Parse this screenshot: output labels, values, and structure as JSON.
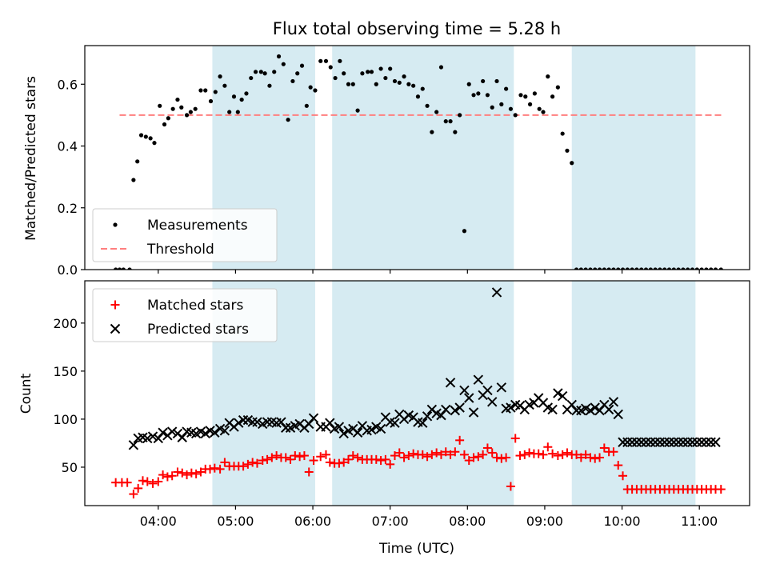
{
  "title": "Flux total observing time = 5.28 h",
  "colors": {
    "measurement": "#000000",
    "threshold": "#ff7f7f",
    "matched": "#ff0000",
    "predicted": "#000000",
    "shade": "#add8e6"
  },
  "chart_data": [
    {
      "type": "scatter",
      "ylabel": "Matched/Predicted stars",
      "xlim": [
        3.05,
        11.65
      ],
      "ylim": [
        0,
        0.725
      ],
      "yticks": [
        0,
        0.2,
        0.4,
        0.6
      ],
      "ytick_labels": [
        "0.0",
        "0.2",
        "0.4",
        "0.6"
      ],
      "xticks": [
        4,
        5,
        6,
        7,
        8,
        9,
        10,
        11
      ],
      "shaded_intervals_hours": [
        [
          4.7,
          6.03
        ],
        [
          6.25,
          8.6
        ],
        [
          9.35,
          10.95
        ]
      ],
      "legend": {
        "position": "lower-left",
        "entries": [
          "Measurements",
          "Threshold"
        ]
      },
      "threshold": {
        "name": "Threshold",
        "value": 0.5,
        "x_range": [
          3.5,
          11.3
        ]
      },
      "series": [
        {
          "name": "Measurements",
          "marker": "dot",
          "x": [
            3.45,
            3.5,
            3.55,
            3.63,
            3.68,
            3.73,
            3.78,
            3.84,
            3.9,
            3.95,
            4.02,
            4.08,
            4.13,
            4.19,
            4.25,
            4.3,
            4.37,
            4.42,
            4.48,
            4.55,
            4.61,
            4.68,
            4.74,
            4.8,
            4.86,
            4.92,
            4.98,
            5.03,
            5.08,
            5.14,
            5.2,
            5.26,
            5.33,
            5.38,
            5.44,
            5.5,
            5.56,
            5.62,
            5.68,
            5.74,
            5.8,
            5.86,
            5.92,
            5.97,
            6.03,
            6.1,
            6.17,
            6.23,
            6.29,
            6.35,
            6.4,
            6.46,
            6.52,
            6.58,
            6.64,
            6.71,
            6.76,
            6.82,
            6.88,
            6.94,
            7.0,
            7.06,
            7.12,
            7.18,
            7.24,
            7.3,
            7.36,
            7.42,
            7.48,
            7.54,
            7.6,
            7.66,
            7.72,
            7.78,
            7.84,
            7.9,
            7.96,
            8.02,
            8.08,
            8.14,
            8.2,
            8.26,
            8.32,
            8.38,
            8.44,
            8.5,
            8.56,
            8.62,
            8.69,
            8.75,
            8.81,
            8.87,
            8.93,
            8.98,
            9.04,
            9.1,
            9.17,
            9.23,
            9.29,
            9.35,
            9.41,
            9.47,
            9.53,
            9.59,
            9.65,
            9.71,
            9.77,
            9.83,
            9.89,
            9.95,
            10.01,
            10.07,
            10.13,
            10.19,
            10.25,
            10.31,
            10.37,
            10.43,
            10.49,
            10.55,
            10.61,
            10.67,
            10.73,
            10.79,
            10.85,
            10.91,
            10.97,
            11.03,
            11.09,
            11.15,
            11.21,
            11.28
          ],
          "y": [
            0.0,
            0.0,
            0.0,
            0.0,
            0.29,
            0.35,
            0.435,
            0.43,
            0.425,
            0.41,
            0.53,
            0.47,
            0.49,
            0.52,
            0.55,
            0.525,
            0.5,
            0.51,
            0.52,
            0.58,
            0.58,
            0.545,
            0.575,
            0.625,
            0.595,
            0.51,
            0.56,
            0.51,
            0.55,
            0.57,
            0.62,
            0.64,
            0.64,
            0.635,
            0.595,
            0.64,
            0.69,
            0.665,
            0.485,
            0.61,
            0.635,
            0.66,
            0.53,
            0.59,
            0.58,
            0.675,
            0.675,
            0.655,
            0.62,
            0.675,
            0.635,
            0.6,
            0.6,
            0.515,
            0.635,
            0.64,
            0.64,
            0.6,
            0.65,
            0.62,
            0.65,
            0.61,
            0.605,
            0.625,
            0.6,
            0.595,
            0.56,
            0.585,
            0.53,
            0.445,
            0.51,
            0.655,
            0.48,
            0.48,
            0.445,
            0.5,
            0.125,
            0.6,
            0.565,
            0.57,
            0.61,
            0.565,
            0.525,
            0.61,
            0.535,
            0.585,
            0.52,
            0.5,
            0.565,
            0.56,
            0.535,
            0.57,
            0.52,
            0.51,
            0.625,
            0.56,
            0.59,
            0.44,
            0.385,
            0.345,
            0.0,
            0.0,
            0.0,
            0.0,
            0.0,
            0.0,
            0.0,
            0.0,
            0.0,
            0.0,
            0.0,
            0.0,
            0.0,
            0.0,
            0.0,
            0.0,
            0.0,
            0.0,
            0.0,
            0.0,
            0.0,
            0.0,
            0.0,
            0.0,
            0.0,
            0.0,
            0.0,
            0.0,
            0.0,
            0.0,
            0.0,
            0.0
          ]
        }
      ]
    },
    {
      "type": "scatter",
      "xlabel": "Time (UTC)",
      "ylabel": "Count",
      "xlim": [
        3.05,
        11.65
      ],
      "ylim": [
        10,
        244
      ],
      "yticks": [
        50,
        100,
        150,
        200
      ],
      "ytick_labels": [
        "50",
        "100",
        "150",
        "200"
      ],
      "xticks": [
        4,
        5,
        6,
        7,
        8,
        9,
        10,
        11
      ],
      "xtick_labels": [
        "04:00",
        "05:00",
        "06:00",
        "07:00",
        "08:00",
        "09:00",
        "10:00",
        "11:00"
      ],
      "shaded_intervals_hours": [
        [
          4.7,
          6.03
        ],
        [
          6.25,
          8.6
        ],
        [
          9.35,
          10.95
        ]
      ],
      "legend": {
        "position": "upper-left",
        "entries": [
          "Matched stars",
          "Predicted stars"
        ]
      },
      "series": [
        {
          "name": "Matched stars",
          "marker": "plus",
          "x": [
            3.45,
            3.53,
            3.6,
            3.68,
            3.74,
            3.8,
            3.86,
            3.93,
            4.0,
            4.06,
            4.12,
            4.18,
            4.25,
            4.31,
            4.37,
            4.43,
            4.49,
            4.55,
            4.61,
            4.67,
            4.73,
            4.8,
            4.86,
            4.92,
            4.98,
            5.04,
            5.1,
            5.16,
            5.22,
            5.28,
            5.35,
            5.41,
            5.47,
            5.53,
            5.59,
            5.65,
            5.71,
            5.77,
            5.83,
            5.89,
            5.95,
            6.01,
            6.1,
            6.17,
            6.22,
            6.28,
            6.34,
            6.4,
            6.46,
            6.52,
            6.58,
            6.64,
            6.7,
            6.76,
            6.82,
            6.88,
            6.94,
            7.0,
            7.06,
            7.12,
            7.18,
            7.24,
            7.3,
            7.36,
            7.42,
            7.48,
            7.54,
            7.6,
            7.66,
            7.72,
            7.78,
            7.84,
            7.9,
            7.96,
            8.02,
            8.08,
            8.14,
            8.2,
            8.26,
            8.32,
            8.38,
            8.44,
            8.5,
            8.56,
            8.62,
            8.68,
            8.74,
            8.8,
            8.86,
            8.92,
            8.98,
            9.04,
            9.1,
            9.17,
            9.23,
            9.29,
            9.35,
            9.41,
            9.47,
            9.53,
            9.59,
            9.65,
            9.71,
            9.77,
            9.83,
            9.89,
            9.95,
            10.01,
            10.07,
            10.13,
            10.19,
            10.25,
            10.31,
            10.37,
            10.43,
            10.49,
            10.55,
            10.61,
            10.67,
            10.73,
            10.79,
            10.85,
            10.91,
            10.97,
            11.03,
            11.09,
            11.15,
            11.21,
            11.28
          ],
          "y": [
            34,
            34,
            34,
            22,
            28,
            36,
            35,
            33,
            35,
            42,
            40,
            41,
            45,
            44,
            42,
            44,
            43,
            45,
            48,
            48,
            49,
            48,
            55,
            51,
            51,
            51,
            51,
            53,
            55,
            54,
            57,
            58,
            60,
            62,
            60,
            60,
            58,
            62,
            61,
            62,
            45,
            57,
            61,
            63,
            55,
            54,
            54,
            55,
            58,
            62,
            60,
            58,
            58,
            58,
            58,
            57,
            58,
            53,
            62,
            65,
            60,
            62,
            64,
            63,
            63,
            61,
            63,
            65,
            63,
            66,
            63,
            66,
            78,
            63,
            57,
            60,
            61,
            63,
            70,
            65,
            60,
            59,
            60,
            30,
            80,
            62,
            63,
            65,
            64,
            64,
            63,
            71,
            64,
            62,
            63,
            65,
            63,
            63,
            60,
            63,
            60,
            59,
            60,
            70,
            66,
            66,
            52,
            41,
            27,
            27,
            27,
            27,
            27,
            27,
            27,
            27,
            27,
            27,
            27,
            27,
            27,
            27,
            27,
            27,
            27,
            27,
            27,
            27,
            27
          ]
        },
        {
          "name": "Predicted stars",
          "marker": "x",
          "x": [
            3.68,
            3.74,
            3.8,
            3.86,
            3.93,
            4.0,
            4.06,
            4.12,
            4.18,
            4.25,
            4.31,
            4.37,
            4.43,
            4.49,
            4.55,
            4.61,
            4.67,
            4.73,
            4.8,
            4.86,
            4.92,
            4.98,
            5.04,
            5.1,
            5.16,
            5.22,
            5.28,
            5.35,
            5.41,
            5.47,
            5.53,
            5.59,
            5.65,
            5.71,
            5.77,
            5.83,
            5.89,
            5.95,
            6.01,
            6.1,
            6.17,
            6.22,
            6.28,
            6.34,
            6.4,
            6.46,
            6.52,
            6.58,
            6.64,
            6.7,
            6.76,
            6.82,
            6.88,
            6.94,
            7.0,
            7.06,
            7.12,
            7.18,
            7.24,
            7.3,
            7.36,
            7.42,
            7.48,
            7.54,
            7.6,
            7.66,
            7.72,
            7.78,
            7.84,
            7.9,
            7.96,
            8.02,
            8.08,
            8.14,
            8.2,
            8.26,
            8.32,
            8.38,
            8.44,
            8.5,
            8.56,
            8.62,
            8.68,
            8.74,
            8.8,
            8.86,
            8.92,
            8.98,
            9.04,
            9.1,
            9.17,
            9.23,
            9.29,
            9.35,
            9.41,
            9.47,
            9.53,
            9.59,
            9.65,
            9.71,
            9.77,
            9.83,
            9.89,
            9.95,
            10.01,
            10.07,
            10.13,
            10.19,
            10.25,
            10.31,
            10.37,
            10.43,
            10.49,
            10.55,
            10.61,
            10.67,
            10.73,
            10.79,
            10.85,
            10.91,
            10.97,
            11.03,
            11.09,
            11.15,
            11.21
          ],
          "y": [
            73,
            80,
            81,
            80,
            82,
            80,
            86,
            83,
            87,
            85,
            81,
            87,
            86,
            85,
            87,
            85,
            88,
            86,
            90,
            88,
            96,
            92,
            96,
            99,
            99,
            97,
            97,
            95,
            97,
            97,
            96,
            97,
            91,
            91,
            93,
            95,
            91,
            95,
            101,
            92,
            92,
            96,
            90,
            92,
            85,
            88,
            90,
            86,
            93,
            88,
            89,
            92,
            90,
            102,
            97,
            96,
            105,
            100,
            104,
            102,
            97,
            96,
            103,
            110,
            106,
            104,
            110,
            138,
            109,
            112,
            130,
            122,
            107,
            141,
            125,
            130,
            118,
            232,
            133,
            111,
            112,
            115,
            114,
            110,
            115,
            117,
            122,
            117,
            112,
            110,
            127,
            124,
            110,
            115,
            109,
            109,
            111,
            109,
            112,
            109,
            115,
            110,
            118,
            105,
            76,
            76,
            76,
            76,
            76,
            76,
            76,
            76,
            76,
            76,
            76,
            76,
            76,
            76,
            76,
            76,
            76,
            76,
            76,
            76,
            76
          ]
        }
      ]
    }
  ]
}
